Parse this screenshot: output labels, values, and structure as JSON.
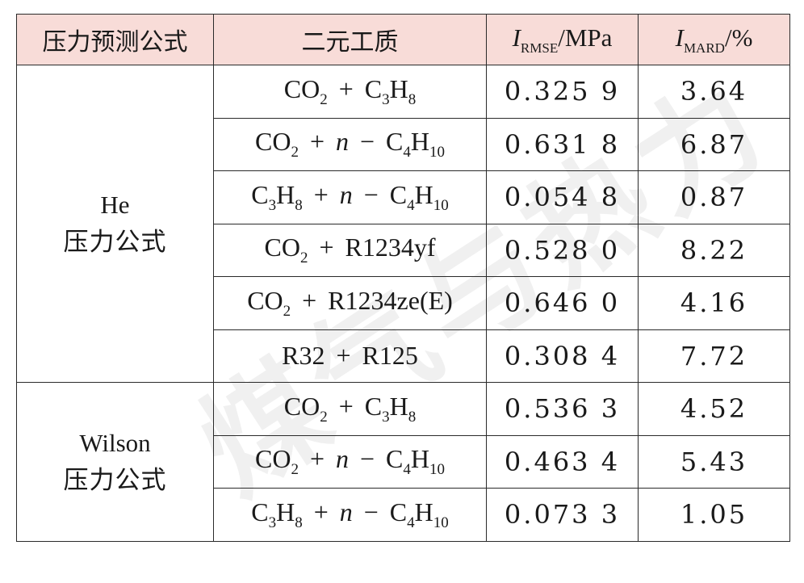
{
  "watermark": "煤气与热力",
  "table": {
    "headers": {
      "formula": "压力预测公式",
      "working_fluid": "二元工质",
      "rmse_symbol": "I",
      "rmse_sub": "RMSE",
      "rmse_unit": "/MPa",
      "mard_symbol": "I",
      "mard_sub": "MARD",
      "mard_unit": "/%"
    },
    "groups": [
      {
        "name_line1": "He",
        "name_line2": "压力公式",
        "rows": [
          {
            "fluid": "CO2 + C3H8",
            "rmse": "0.325 9",
            "mard": "3.64"
          },
          {
            "fluid": "CO2 + n − C4H10",
            "rmse": "0.631 8",
            "mard": "6.87"
          },
          {
            "fluid": "C3H8 + n − C4H10",
            "rmse": "0.054 8",
            "mard": "0.87"
          },
          {
            "fluid": "CO2 + R1234yf",
            "rmse": "0.528 0",
            "mard": "8.22"
          },
          {
            "fluid": "CO2 + R1234ze(E)",
            "rmse": "0.646 0",
            "mard": "4.16"
          },
          {
            "fluid": "R32 + R125",
            "rmse": "0.308 4",
            "mard": "7.72"
          }
        ]
      },
      {
        "name_line1": "Wilson",
        "name_line2": "压力公式",
        "rows": [
          {
            "fluid": "CO2 + C3H8",
            "rmse": "0.536 3",
            "mard": "4.52"
          },
          {
            "fluid": "CO2 + n − C4H10",
            "rmse": "0.463 4",
            "mard": "5.43"
          },
          {
            "fluid": "C3H8 + n − C4H10",
            "rmse": "0.073 3",
            "mard": "1.05"
          }
        ]
      }
    ]
  },
  "colors": {
    "header_bg": "#f8dcd8",
    "border": "#2a2a2a",
    "text": "#1a1a1a"
  }
}
